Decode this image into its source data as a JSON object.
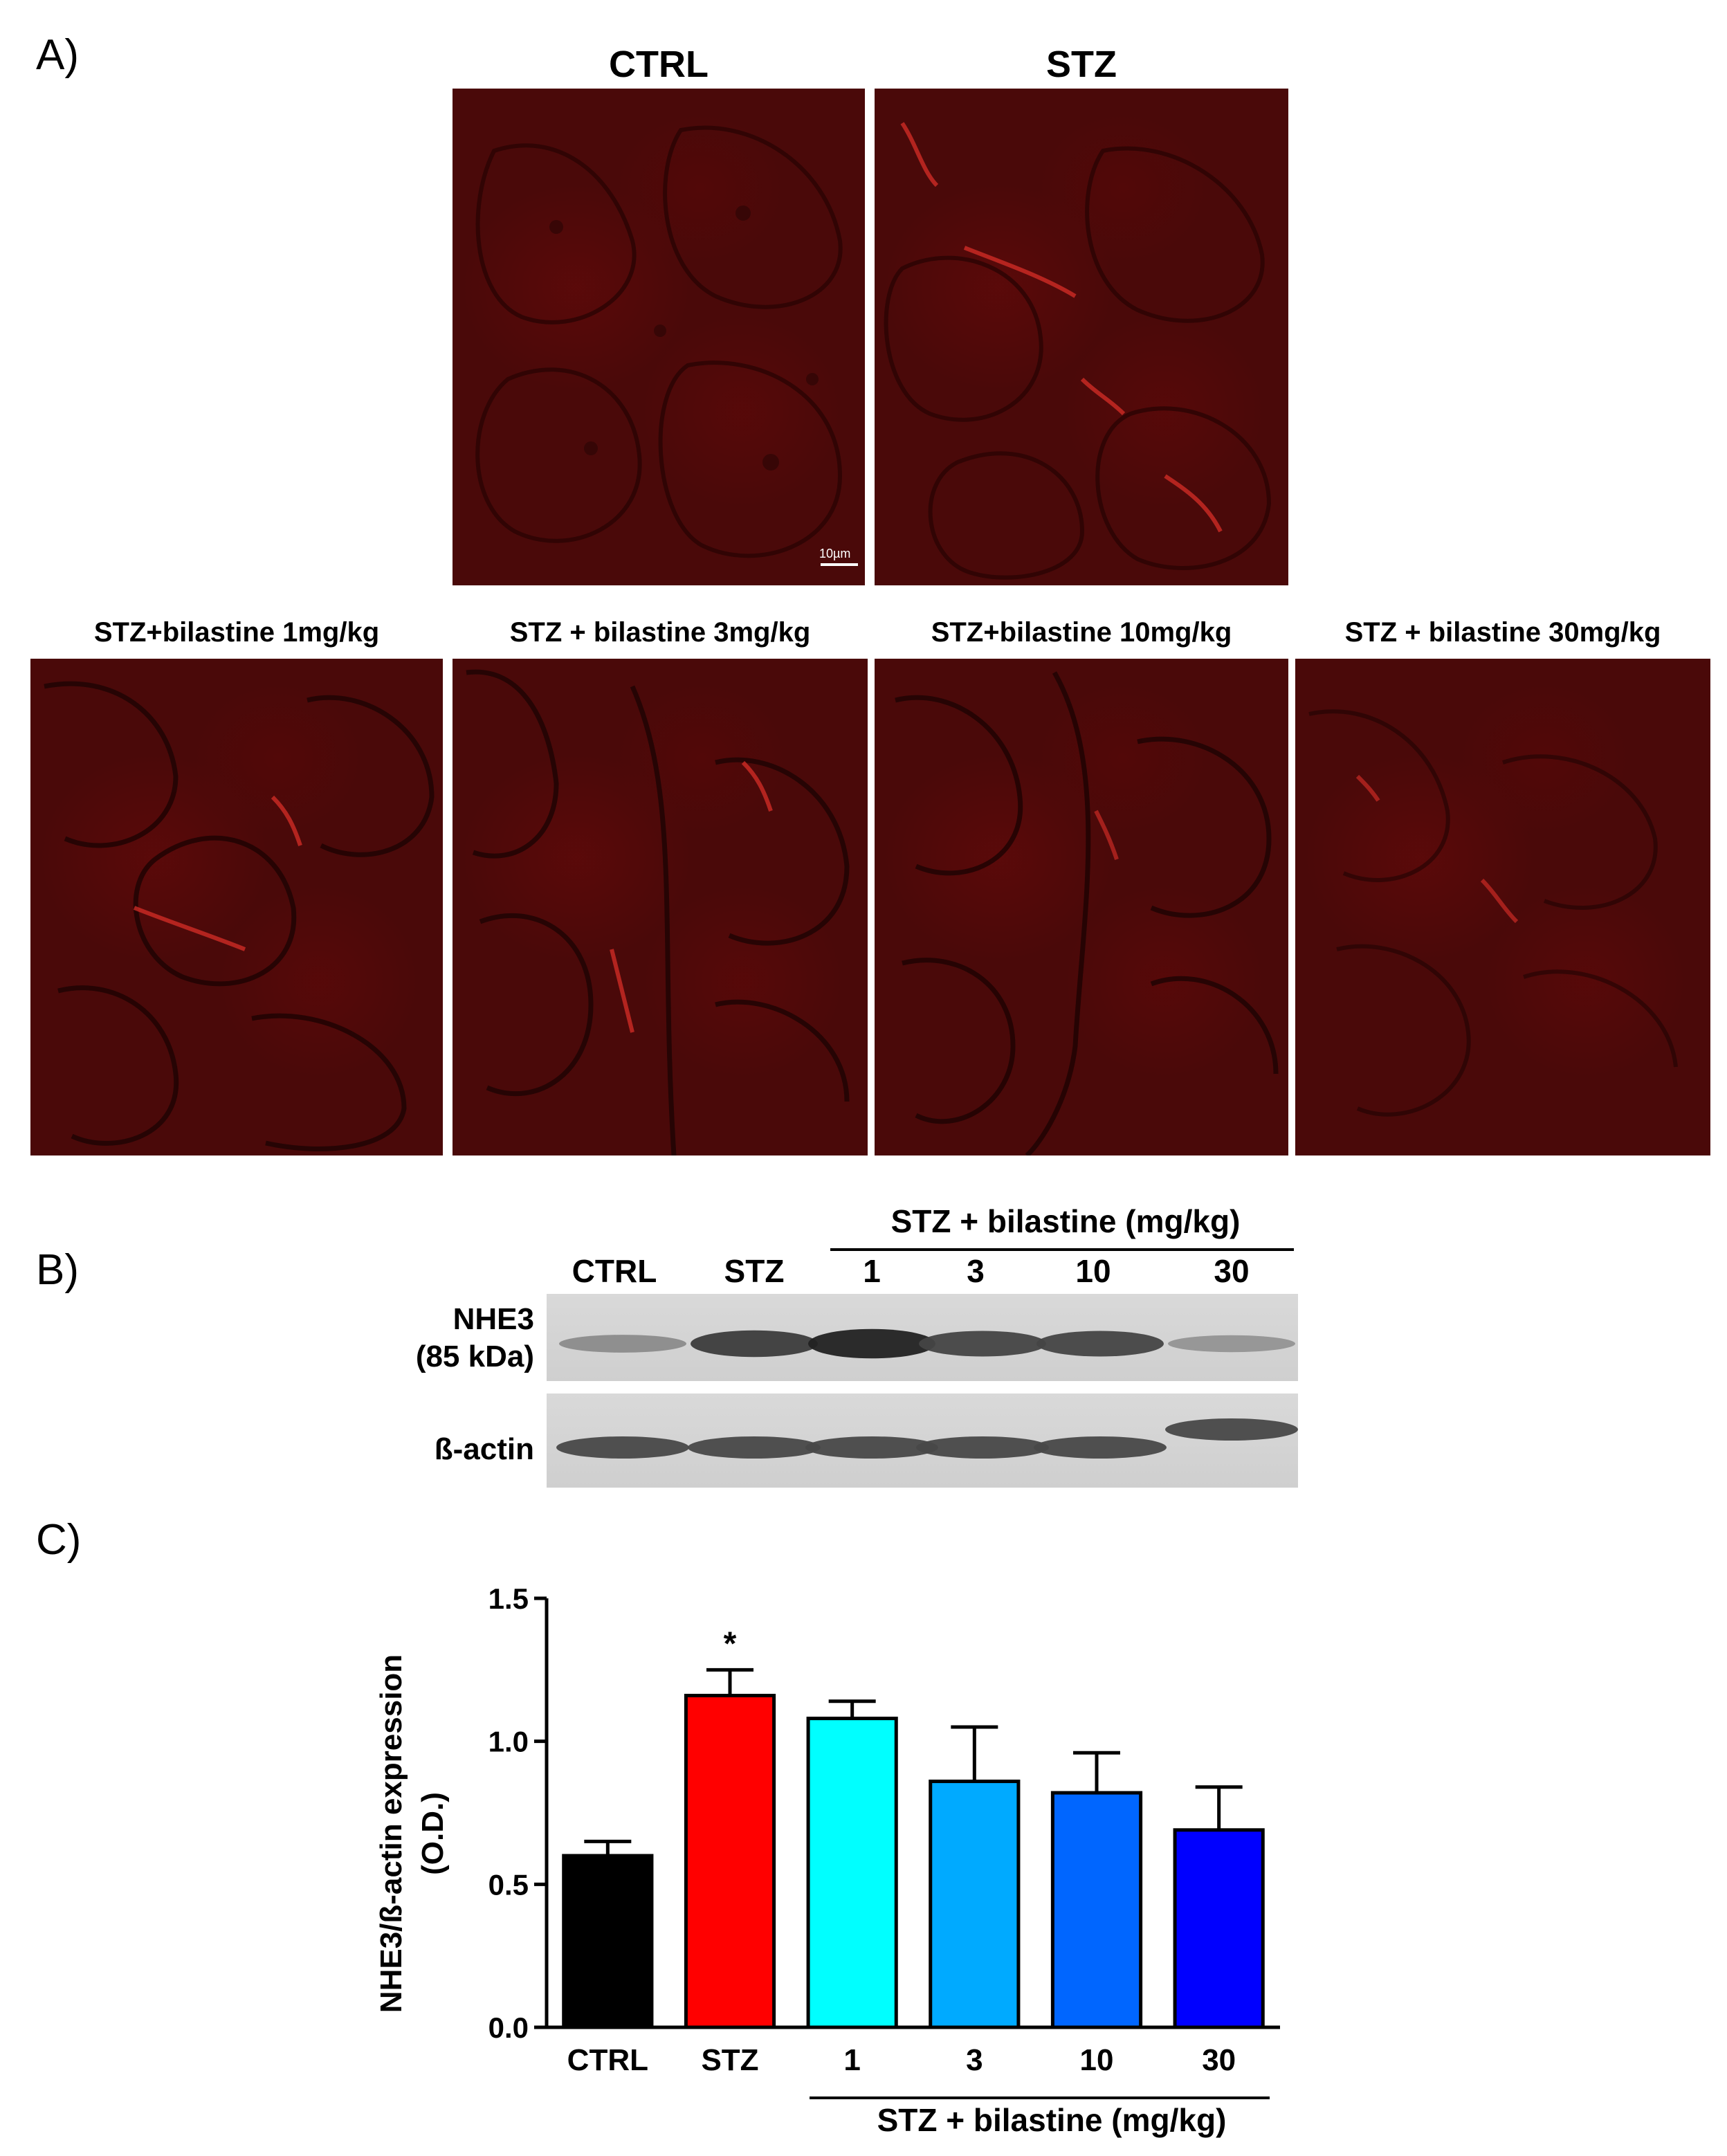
{
  "panels": {
    "a": {
      "letter": "A)"
    },
    "b": {
      "letter": "B)"
    },
    "c": {
      "letter": "C)"
    }
  },
  "micrographs": {
    "top": [
      {
        "title": "CTRL"
      },
      {
        "title": "STZ"
      }
    ],
    "bottom": [
      {
        "title": "STZ+bilastine 1mg/kg"
      },
      {
        "title": "STZ + bilastine 3mg/kg"
      },
      {
        "title": "STZ+bilastine 10mg/kg"
      },
      {
        "title": "STZ + bilastine 30mg/kg"
      }
    ],
    "scale_bar": "10µm",
    "stain_color": "#4a0909"
  },
  "western": {
    "group_header": "STZ + bilastine (mg/kg)",
    "lanes": [
      "CTRL",
      "STZ",
      "1",
      "3",
      "10",
      "30"
    ],
    "row1_label_line1": "NHE3",
    "row1_label_line2": "(85 kDa)",
    "row2_label": "ß-actin",
    "nhe3_band_intensity": [
      0.35,
      0.8,
      0.95,
      0.75,
      0.75,
      0.3
    ],
    "actin_band_intensity": [
      0.8,
      0.8,
      0.8,
      0.8,
      0.8,
      0.8
    ]
  },
  "chart_data": {
    "type": "bar",
    "categories": [
      "CTRL",
      "STZ",
      "1",
      "3",
      "10",
      "30"
    ],
    "values": [
      0.6,
      1.16,
      1.08,
      0.86,
      0.82,
      0.69
    ],
    "errors": [
      0.05,
      0.09,
      0.06,
      0.19,
      0.14,
      0.15
    ],
    "colors": [
      "#000000",
      "#ff0000",
      "#00ffff",
      "#00aaff",
      "#0066ff",
      "#0000ff"
    ],
    "ylabel_line1": "NHE3/ß-actin expression",
    "ylabel_line2": "(O.D.)",
    "ylim": [
      0,
      1.5
    ],
    "yticks": [
      "0.0",
      "0.5",
      "1.0",
      "1.5"
    ],
    "ytick_values": [
      0,
      0.5,
      1.0,
      1.5
    ],
    "significance": "*",
    "group_label": "STZ + bilastine (mg/kg)"
  }
}
